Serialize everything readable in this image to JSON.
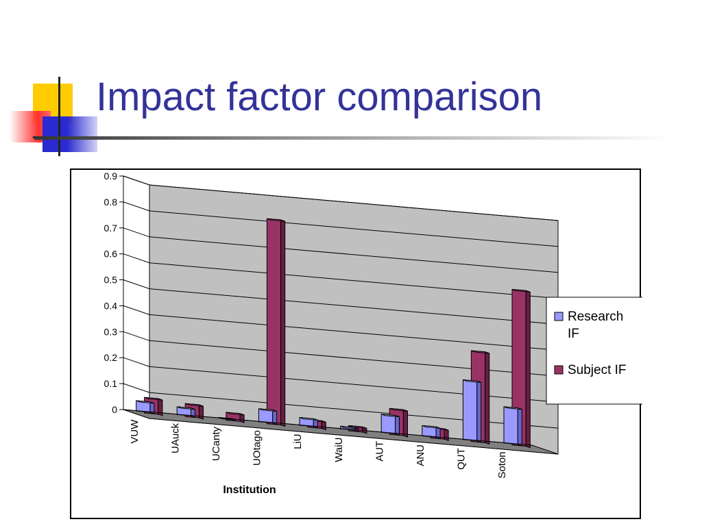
{
  "slide": {
    "title": "Impact factor comparison"
  },
  "chart_data": {
    "type": "bar",
    "title": "",
    "xlabel": "Institution",
    "ylabel": "",
    "ylim": [
      0,
      0.9
    ],
    "y_ticks": [
      "0",
      "0.1",
      "0.2",
      "0.3",
      "0.4",
      "0.5",
      "0.6",
      "0.7",
      "0.8",
      "0.9"
    ],
    "categories": [
      "VUW",
      "UAuck",
      "UCanty",
      "UOtago",
      "LiU",
      "WaiU",
      "AUT",
      "ANU",
      "QUT",
      "Soton"
    ],
    "series": [
      {
        "name": "Research IF",
        "values": [
          0.04,
          0.03,
          0.0,
          0.05,
          0.03,
          0.01,
          0.07,
          0.04,
          0.23,
          0.14
        ]
      },
      {
        "name": "Subject IF",
        "values": [
          0.06,
          0.05,
          0.03,
          0.79,
          0.03,
          0.02,
          0.1,
          0.04,
          0.35,
          0.6
        ]
      }
    ],
    "colors": {
      "research_front": "#9999ff",
      "research_top": "#ccccff",
      "research_side": "#6666cc",
      "subject_front": "#993366",
      "subject_top": "#bb5588",
      "subject_side": "#661f44",
      "back_wall": "#c0c0c0",
      "floor": "#808080",
      "left_wall": "#ffffff"
    },
    "grid": true,
    "legend_position": "right",
    "three_d": true
  }
}
